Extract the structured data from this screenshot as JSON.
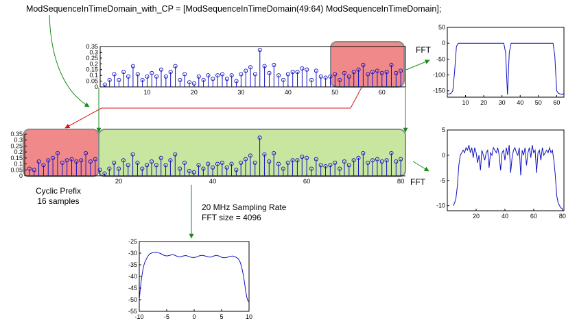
{
  "code_line": "ModSequenceInTimeDomain_with_CP = [ModSequenceInTimeDomain(49:64) ModSequenceInTimeDomain];",
  "labels": {
    "fft_top": "FFT",
    "fft_mid": "FFT",
    "cyclic_prefix_line1": "Cyclic Prefix",
    "cyclic_prefix_line2": "16 samples",
    "sampling_rate": "20 MHz Sampling Rate",
    "fft_size": "FFT size = 4096"
  },
  "colors": {
    "stem": "#1010c0",
    "highlight_red": "#f08a8a",
    "highlight_green": "#c8e6a0",
    "box_border": "#8a8a8a",
    "arrow_green": "#1a8a1a",
    "arrow_red": "#e01010"
  },
  "chart_data": [
    {
      "id": "stem64",
      "type": "stem",
      "xlim": [
        0,
        65
      ],
      "ylim": [
        0,
        0.35
      ],
      "xticks": [
        10,
        20,
        30,
        40,
        50,
        60
      ],
      "yticks": [
        0,
        0.05,
        0.1,
        0.15,
        0.2,
        0.25,
        0.3,
        0.35
      ],
      "ytick_labels": [
        "0",
        "0.05",
        "0.1",
        "0.15",
        "0.2",
        "0.25",
        "0.3",
        "0.35"
      ],
      "values": [
        0.02,
        0.06,
        0.11,
        0.06,
        0.13,
        0.09,
        0.18,
        0.11,
        0.06,
        0.09,
        0.12,
        0.09,
        0.15,
        0.09,
        0.13,
        0.18,
        0.06,
        0.11,
        0.04,
        0.03,
        0.09,
        0.06,
        0.1,
        0.07,
        0.1,
        0.11,
        0.07,
        0.1,
        0.05,
        0.11,
        0.14,
        0.17,
        0.11,
        0.32,
        0.18,
        0.12,
        0.19,
        0.1,
        0.06,
        0.11,
        0.13,
        0.13,
        0.16,
        0.15,
        0.06,
        0.14,
        0.09,
        0.08,
        0.09,
        0.11,
        0.06,
        0.12,
        0.09,
        0.13,
        0.15,
        0.19,
        0.11,
        0.13,
        0.14,
        0.12,
        0.13,
        0.19,
        0.12,
        0.14
      ]
    },
    {
      "id": "stem80",
      "type": "stem",
      "xlim": [
        0,
        81
      ],
      "ylim": [
        0,
        0.35
      ],
      "xticks": [
        20,
        40,
        60,
        80
      ],
      "yticks": [
        0,
        0.05,
        0.1,
        0.15,
        0.2,
        0.25,
        0.3,
        0.35
      ],
      "ytick_labels": [
        "0",
        "0.05",
        "0.1",
        "0.15",
        "0.2",
        "0.25",
        "0.3",
        "0.35"
      ],
      "values": [
        0.06,
        0.05,
        0.12,
        0.09,
        0.13,
        0.15,
        0.19,
        0.11,
        0.13,
        0.14,
        0.12,
        0.13,
        0.19,
        0.12,
        0.14,
        0.05,
        0.02,
        0.06,
        0.11,
        0.06,
        0.13,
        0.09,
        0.18,
        0.11,
        0.06,
        0.09,
        0.12,
        0.09,
        0.15,
        0.09,
        0.13,
        0.18,
        0.06,
        0.11,
        0.04,
        0.03,
        0.09,
        0.06,
        0.1,
        0.07,
        0.1,
        0.11,
        0.07,
        0.1,
        0.05,
        0.11,
        0.14,
        0.17,
        0.11,
        0.32,
        0.18,
        0.12,
        0.19,
        0.1,
        0.06,
        0.11,
        0.13,
        0.13,
        0.16,
        0.15,
        0.06,
        0.14,
        0.09,
        0.08,
        0.09,
        0.11,
        0.06,
        0.12,
        0.09,
        0.13,
        0.15,
        0.19,
        0.11,
        0.13,
        0.14,
        0.12,
        0.13,
        0.19,
        0.12,
        0.14
      ]
    },
    {
      "id": "fft64",
      "type": "line",
      "xlim": [
        0,
        64
      ],
      "ylim": [
        -170,
        50
      ],
      "xticks": [
        10,
        20,
        30,
        40,
        50,
        60
      ],
      "yticks": [
        -150,
        -100,
        -50,
        0,
        50
      ],
      "x": [
        0,
        1,
        2,
        3,
        4,
        5,
        6,
        7,
        31,
        32,
        33,
        34,
        35,
        57,
        58,
        59,
        60,
        61,
        62,
        63,
        64
      ],
      "y": [
        -160,
        -160,
        -158,
        -150,
        -90,
        -10,
        0,
        0,
        0,
        -30,
        -162,
        -30,
        0,
        0,
        0,
        -40,
        -150,
        -158,
        -160,
        -162,
        -158
      ]
    },
    {
      "id": "fft80",
      "type": "line",
      "xlim": [
        0,
        81
      ],
      "ylim": [
        -11,
        5
      ],
      "xticks": [
        20,
        40,
        60,
        80
      ],
      "yticks": [
        -10,
        -5,
        0,
        5
      ],
      "x": [
        4,
        5,
        6,
        7,
        8,
        9,
        10,
        11,
        12,
        13,
        14,
        15,
        16,
        17,
        18,
        19,
        20,
        21,
        22,
        23,
        24,
        25,
        26,
        27,
        28,
        29,
        30,
        31,
        32,
        33,
        34,
        35,
        36,
        37,
        38,
        39,
        40,
        41,
        42,
        43,
        44,
        45,
        46,
        47,
        48,
        49,
        50,
        51,
        52,
        53,
        54,
        55,
        56,
        57,
        58,
        59,
        60,
        61,
        62,
        63,
        64,
        65,
        66,
        67,
        68,
        69,
        70,
        71,
        72,
        73,
        74,
        75,
        76,
        77,
        78,
        79,
        80
      ],
      "y": [
        -10,
        -9.5,
        -8.5,
        -6,
        -2,
        0,
        0.5,
        1,
        0.5,
        1.5,
        1,
        2,
        0.5,
        1.5,
        -0.5,
        1.5,
        0.5,
        -1.5,
        0,
        -3,
        1,
        0,
        -1,
        0.5,
        1,
        -2.5,
        0.5,
        0,
        1.5,
        1,
        0.5,
        1.5,
        0,
        -3,
        0.5,
        1,
        -1,
        1.5,
        0,
        2,
        -3.5,
        -0.5,
        1,
        1.5,
        0.5,
        0,
        1.5,
        -4,
        1,
        0,
        1.5,
        -2,
        0.5,
        1.5,
        -0.5,
        2,
        0.5,
        1,
        -3.5,
        0.5,
        1,
        -1,
        1.5,
        0,
        0.5,
        1,
        0.5,
        1.5,
        0.5,
        1,
        -1,
        -4,
        -8,
        -9.5,
        -10,
        -10.5,
        -10.5
      ]
    },
    {
      "id": "psd",
      "type": "line",
      "xlim": [
        -10,
        10
      ],
      "ylim": [
        -55,
        -25
      ],
      "xticks": [
        -10,
        -5,
        0,
        5,
        10
      ],
      "yticks": [
        -55,
        -50,
        -45,
        -40,
        -35,
        -30,
        -25
      ],
      "x": [
        -10,
        -9.8,
        -9.6,
        -9.4,
        -9.2,
        -9,
        -8.8,
        -8.6,
        -8.4,
        -8.2,
        -8,
        -7.5,
        -7,
        -6.5,
        -6,
        -5.5,
        -5,
        -4.5,
        -4,
        -3.5,
        -3,
        -2.5,
        -2,
        -1.5,
        -1,
        -0.5,
        0,
        0.5,
        1,
        1.5,
        2,
        2.5,
        3,
        3.5,
        4,
        4.5,
        5,
        5.5,
        6,
        6.5,
        7,
        7.5,
        8,
        8.2,
        8.4,
        8.6,
        8.8,
        9,
        9.2,
        9.4,
        9.6,
        9.8,
        10
      ],
      "y": [
        -50,
        -45,
        -41,
        -38,
        -35.5,
        -34,
        -33,
        -32,
        -31.2,
        -30.6,
        -30.2,
        -29.7,
        -29.6,
        -29.8,
        -30.3,
        -30.9,
        -31.2,
        -31,
        -30.6,
        -30.9,
        -31.5,
        -31.6,
        -31.2,
        -31,
        -31.4,
        -31.8,
        -31.9,
        -31.6,
        -31.1,
        -30.9,
        -31.2,
        -31.6,
        -31.7,
        -31.3,
        -30.9,
        -31.2,
        -31.8,
        -32,
        -31.8,
        -31.4,
        -31.2,
        -31.6,
        -32.3,
        -33,
        -34,
        -35.5,
        -37.5,
        -40,
        -43,
        -46.5,
        -49,
        -50.5,
        -51
      ]
    }
  ]
}
